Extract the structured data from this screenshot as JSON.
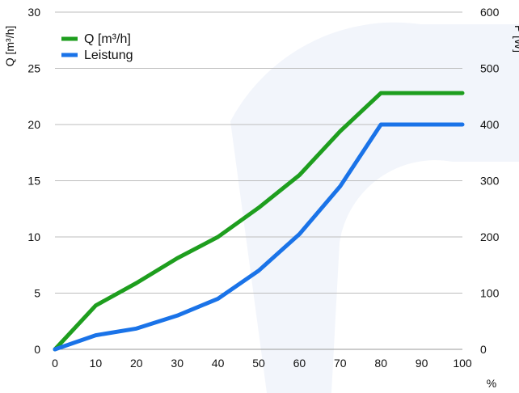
{
  "chart_data": {
    "type": "line",
    "title": "",
    "xlabel": "%",
    "ylabel": "Q [m³/h]",
    "y2label": "P [W]",
    "x": [
      0,
      10,
      20,
      30,
      40,
      50,
      60,
      70,
      80,
      90,
      100
    ],
    "xlim": [
      0,
      100
    ],
    "ylim": [
      0,
      30
    ],
    "y2lim": [
      0,
      600
    ],
    "xticks": [
      "0",
      "10",
      "20",
      "30",
      "40",
      "50",
      "60",
      "70",
      "80",
      "90",
      "100"
    ],
    "yticks": [
      "0",
      "5",
      "10",
      "15",
      "20",
      "25",
      "30"
    ],
    "y2ticks": [
      "0",
      "100",
      "200",
      "300",
      "400",
      "500",
      "600"
    ],
    "grid": true,
    "legend_position": "top-left",
    "series": [
      {
        "name": "Q [m³/h]",
        "axis": "left",
        "color": "#1e9e1e",
        "values": [
          0,
          3.9,
          5.9,
          8.1,
          10.0,
          12.6,
          15.5,
          19.4,
          22.8,
          22.8,
          22.8
        ]
      },
      {
        "name": "Leistung",
        "axis": "right",
        "color": "#1a73e8",
        "values": [
          0,
          25,
          37,
          60,
          90,
          140,
          205,
          290,
          400,
          400,
          400
        ]
      }
    ]
  }
}
